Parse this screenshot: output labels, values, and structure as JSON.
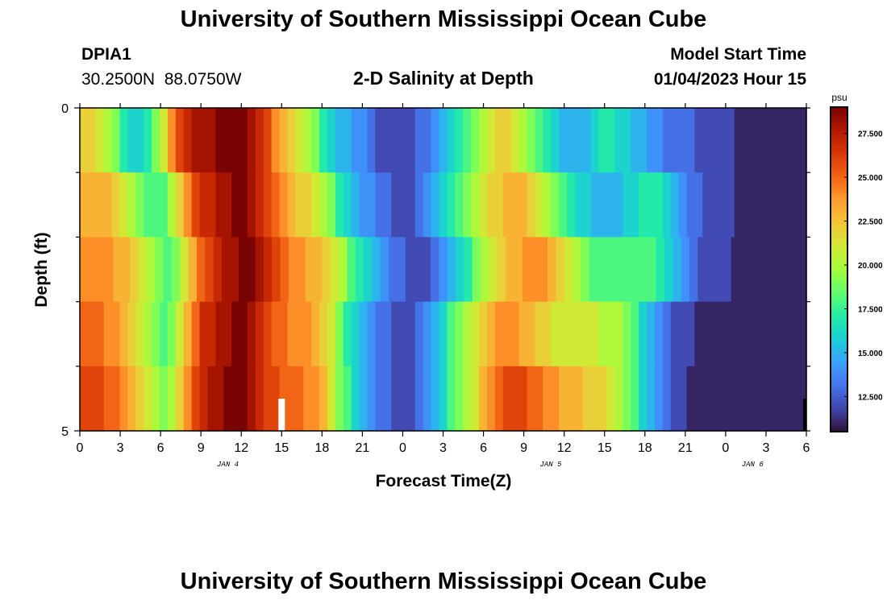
{
  "header": {
    "title": "University of Southern Mississippi Ocean Cube",
    "station": "DPIA1",
    "coords": "30.2500N  88.0750W",
    "subtitle": "2-D Salinity at Depth",
    "model_start_label": "Model Start Time",
    "model_start_value": "01/04/2023 Hour 15"
  },
  "footer": {
    "title": "University of Southern Mississippi Ocean Cube"
  },
  "chart_data": {
    "type": "heatmap",
    "title": "2-D Salinity at Depth",
    "xlabel": "Forecast Time(Z)",
    "ylabel": "Depth (ft)",
    "x_hours": [
      0,
      1,
      2,
      3,
      4,
      5,
      6,
      7,
      8,
      9,
      10,
      11,
      12,
      13,
      14,
      15,
      16,
      17,
      18,
      19,
      20,
      21,
      22,
      23,
      24,
      25,
      26,
      27,
      28,
      29,
      30,
      31,
      32,
      33,
      34,
      35,
      36,
      37,
      38,
      39,
      40,
      41,
      42,
      43,
      44,
      45,
      46,
      47,
      48,
      49,
      50,
      51,
      52,
      53,
      54
    ],
    "x_tick_labels": [
      "0",
      "3",
      "6",
      "9",
      "12",
      "15",
      "18",
      "21",
      "0",
      "3",
      "6",
      "9",
      "12",
      "15",
      "18",
      "21",
      "0",
      "3",
      "6"
    ],
    "date_labels": [
      {
        "hour": 11,
        "text": "JAN 4"
      },
      {
        "hour": 35,
        "text": "JAN 5"
      },
      {
        "hour": 50,
        "text": "JAN 6"
      }
    ],
    "y_tick_labels": [
      "0",
      "5"
    ],
    "ylim": [
      0,
      5
    ],
    "depth_levels": 5,
    "colorbar": {
      "unit": "psu",
      "min": 10.5,
      "max": 29,
      "ticks": [
        "27.500",
        "25.000",
        "22.500",
        "20.000",
        "17.500",
        "15.000",
        "12.500"
      ],
      "colors": [
        "#30123b",
        "#4145ab",
        "#4675ed",
        "#39a2fc",
        "#1bcfd4",
        "#24eca6",
        "#61fc6c",
        "#a4fc3b",
        "#d1e834",
        "#f3c63a",
        "#fe9b2d",
        "#f36315",
        "#d93806",
        "#b11901",
        "#7a0403"
      ]
    },
    "salinity_grid": [
      [
        22,
        22,
        21,
        20,
        19,
        17,
        16,
        16,
        17,
        19,
        21,
        24,
        26,
        27,
        28,
        28,
        28,
        29,
        29,
        29,
        29,
        28,
        27,
        26,
        24,
        23,
        22,
        21,
        20,
        19,
        17,
        16,
        15,
        15,
        14,
        14,
        13,
        12,
        12,
        12,
        12,
        12,
        13,
        13,
        14,
        15,
        16,
        17,
        18,
        19,
        20,
        21,
        22,
        22,
        21,
        20,
        19,
        18,
        17,
        16,
        15,
        15,
        15,
        15,
        16,
        17,
        17,
        16,
        16,
        15,
        15,
        14,
        14,
        13,
        13,
        13,
        13,
        12,
        12,
        12,
        12,
        12,
        11,
        11,
        11,
        11,
        11,
        11,
        11,
        11,
        11
      ],
      [
        23,
        23,
        23,
        23,
        22,
        21,
        20,
        19,
        18,
        18,
        18,
        20,
        22,
        24,
        26,
        27,
        27,
        28,
        28,
        29,
        29,
        28,
        27,
        26,
        25,
        24,
        23,
        22,
        22,
        21,
        20,
        19,
        17,
        16,
        15,
        14,
        14,
        13,
        13,
        12,
        12,
        12,
        13,
        14,
        15,
        16,
        17,
        18,
        19,
        20,
        21,
        22,
        22,
        23,
        23,
        23,
        22,
        21,
        20,
        19,
        18,
        17,
        16,
        16,
        15,
        15,
        15,
        15,
        16,
        16,
        17,
        17,
        17,
        16,
        15,
        14,
        13,
        13,
        12,
        12,
        12,
        12,
        11,
        11,
        11,
        11,
        11,
        11,
        11,
        11,
        11
      ],
      [
        24,
        24,
        24,
        24,
        23,
        23,
        22,
        21,
        20,
        19,
        18,
        19,
        21,
        23,
        25,
        26,
        27,
        28,
        28,
        29,
        29,
        28,
        27,
        26,
        25,
        24,
        24,
        23,
        23,
        22,
        21,
        20,
        18,
        17,
        16,
        15,
        14,
        13,
        13,
        12,
        12,
        12,
        13,
        14,
        15,
        16,
        17,
        19,
        20,
        21,
        22,
        23,
        23,
        24,
        24,
        24,
        23,
        22,
        21,
        20,
        19,
        18,
        18,
        18,
        18,
        18,
        18,
        18,
        18,
        17,
        16,
        15,
        14,
        13,
        12,
        12,
        12,
        12,
        11,
        11,
        11,
        11,
        11,
        11,
        11,
        11,
        11
      ],
      [
        25,
        25,
        25,
        24,
        24,
        23,
        22,
        21,
        20,
        19,
        18,
        19,
        21,
        23,
        25,
        27,
        27,
        28,
        28,
        29,
        29,
        28,
        27,
        26,
        25,
        25,
        24,
        24,
        24,
        23,
        22,
        21,
        19,
        17,
        16,
        15,
        14,
        13,
        13,
        12,
        12,
        12,
        13,
        14,
        15,
        16,
        18,
        19,
        20,
        21,
        22,
        23,
        24,
        24,
        24,
        23,
        23,
        22,
        22,
        21,
        21,
        21,
        21,
        21,
        21,
        20,
        20,
        20,
        19,
        18,
        16,
        15,
        14,
        13,
        12,
        12,
        12,
        11,
        11,
        11,
        11,
        11,
        11,
        11,
        11,
        11,
        11,
        11,
        11,
        11,
        11
      ],
      [
        26,
        26,
        26,
        25,
        25,
        24,
        23,
        22,
        21,
        20,
        19,
        20,
        22,
        24,
        26,
        27,
        28,
        28,
        29,
        29,
        29,
        28,
        27,
        26,
        26,
        25,
        25,
        25,
        24,
        24,
        23,
        21,
        19,
        18,
        16,
        15,
        14,
        13,
        13,
        12,
        12,
        12,
        13,
        14,
        15,
        16,
        18,
        19,
        20,
        21,
        23,
        24,
        25,
        26,
        26,
        26,
        25,
        25,
        24,
        24,
        23,
        23,
        23,
        22,
        22,
        22,
        21,
        20,
        19,
        18,
        16,
        15,
        14,
        13,
        12,
        12,
        11,
        11,
        11,
        11,
        11,
        11,
        11,
        11,
        11,
        11,
        11,
        11,
        11,
        11,
        11
      ]
    ],
    "grid_hours_per_column": 0.6
  },
  "colors": {
    "frame": "#000000",
    "marker_white": "#ffffff",
    "marker_black": "#000000"
  }
}
